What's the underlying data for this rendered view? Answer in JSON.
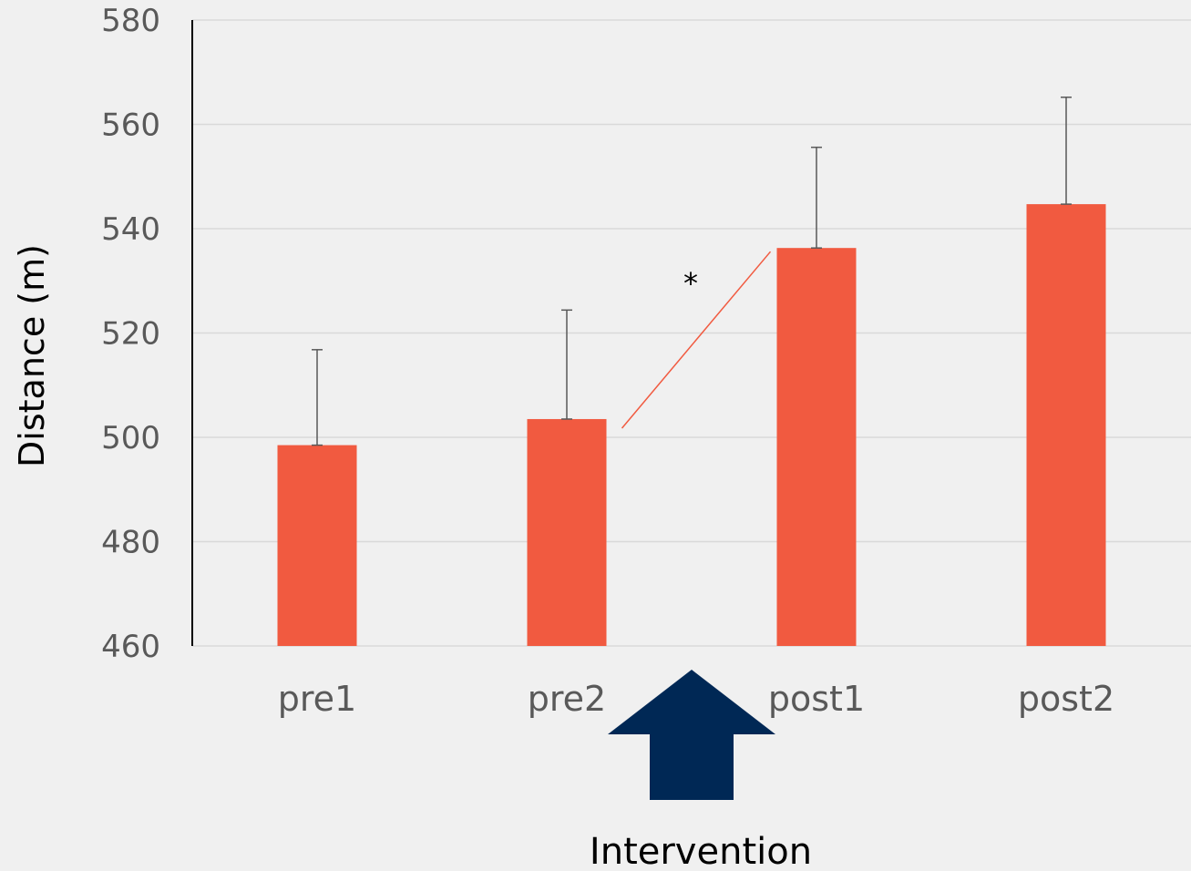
{
  "chart_data": {
    "type": "bar",
    "title": "",
    "xlabel": "",
    "ylabel": "Distance (m)",
    "ylim": [
      460,
      580
    ],
    "yticks": [
      460,
      480,
      500,
      520,
      540,
      560,
      580
    ],
    "grid": true,
    "categories": [
      "pre1",
      "pre2",
      "post1",
      "post2"
    ],
    "values": [
      498.5,
      503.5,
      536.3,
      544.7
    ],
    "error_upper": [
      516.8,
      524.4,
      555.6,
      565.2
    ],
    "bar_color": "#f15a40",
    "significance": {
      "from": "pre2",
      "to": "post1",
      "label": "*",
      "color": "#f15a40"
    },
    "arrow": {
      "label": "Intervention",
      "color": "#002855",
      "between": [
        "pre2",
        "post1"
      ]
    }
  }
}
